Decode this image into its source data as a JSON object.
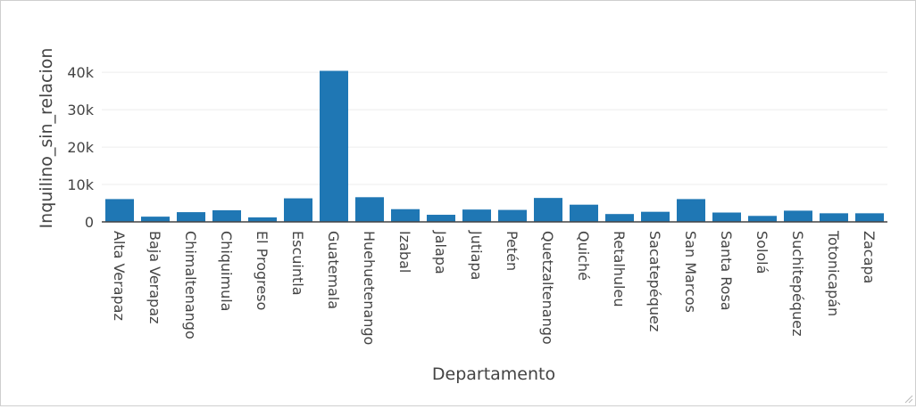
{
  "chart_data": {
    "type": "bar",
    "xlabel": "Departamento",
    "ylabel": "Inquilino_sin_relacion",
    "ylim": [
      0,
      46000
    ],
    "yticks": [
      0,
      10000,
      20000,
      30000,
      40000
    ],
    "ytick_labels": [
      "0",
      "10k",
      "20k",
      "30k",
      "40k"
    ],
    "grid": true,
    "bar_color": "#1f77b4",
    "categories": [
      "Alta Verapaz",
      "Baja Verapaz",
      "Chimaltenango",
      "Chiquimula",
      "El Progreso",
      "Escuintla",
      "Guatemala",
      "Huehuetenango",
      "Izabal",
      "Jalapa",
      "Jutiapa",
      "Petén",
      "Quetzaltenango",
      "Quiché",
      "Retalhuleu",
      "Sacatepéquez",
      "San Marcos",
      "Santa Rosa",
      "Sololá",
      "Suchitepéquez",
      "Totonicapán",
      "Zacapa"
    ],
    "values": [
      6100,
      1400,
      2600,
      3100,
      1200,
      6300,
      40400,
      6600,
      3400,
      1900,
      3300,
      3200,
      6400,
      4600,
      2100,
      2700,
      6100,
      2500,
      1600,
      3000,
      2300,
      2300
    ]
  }
}
